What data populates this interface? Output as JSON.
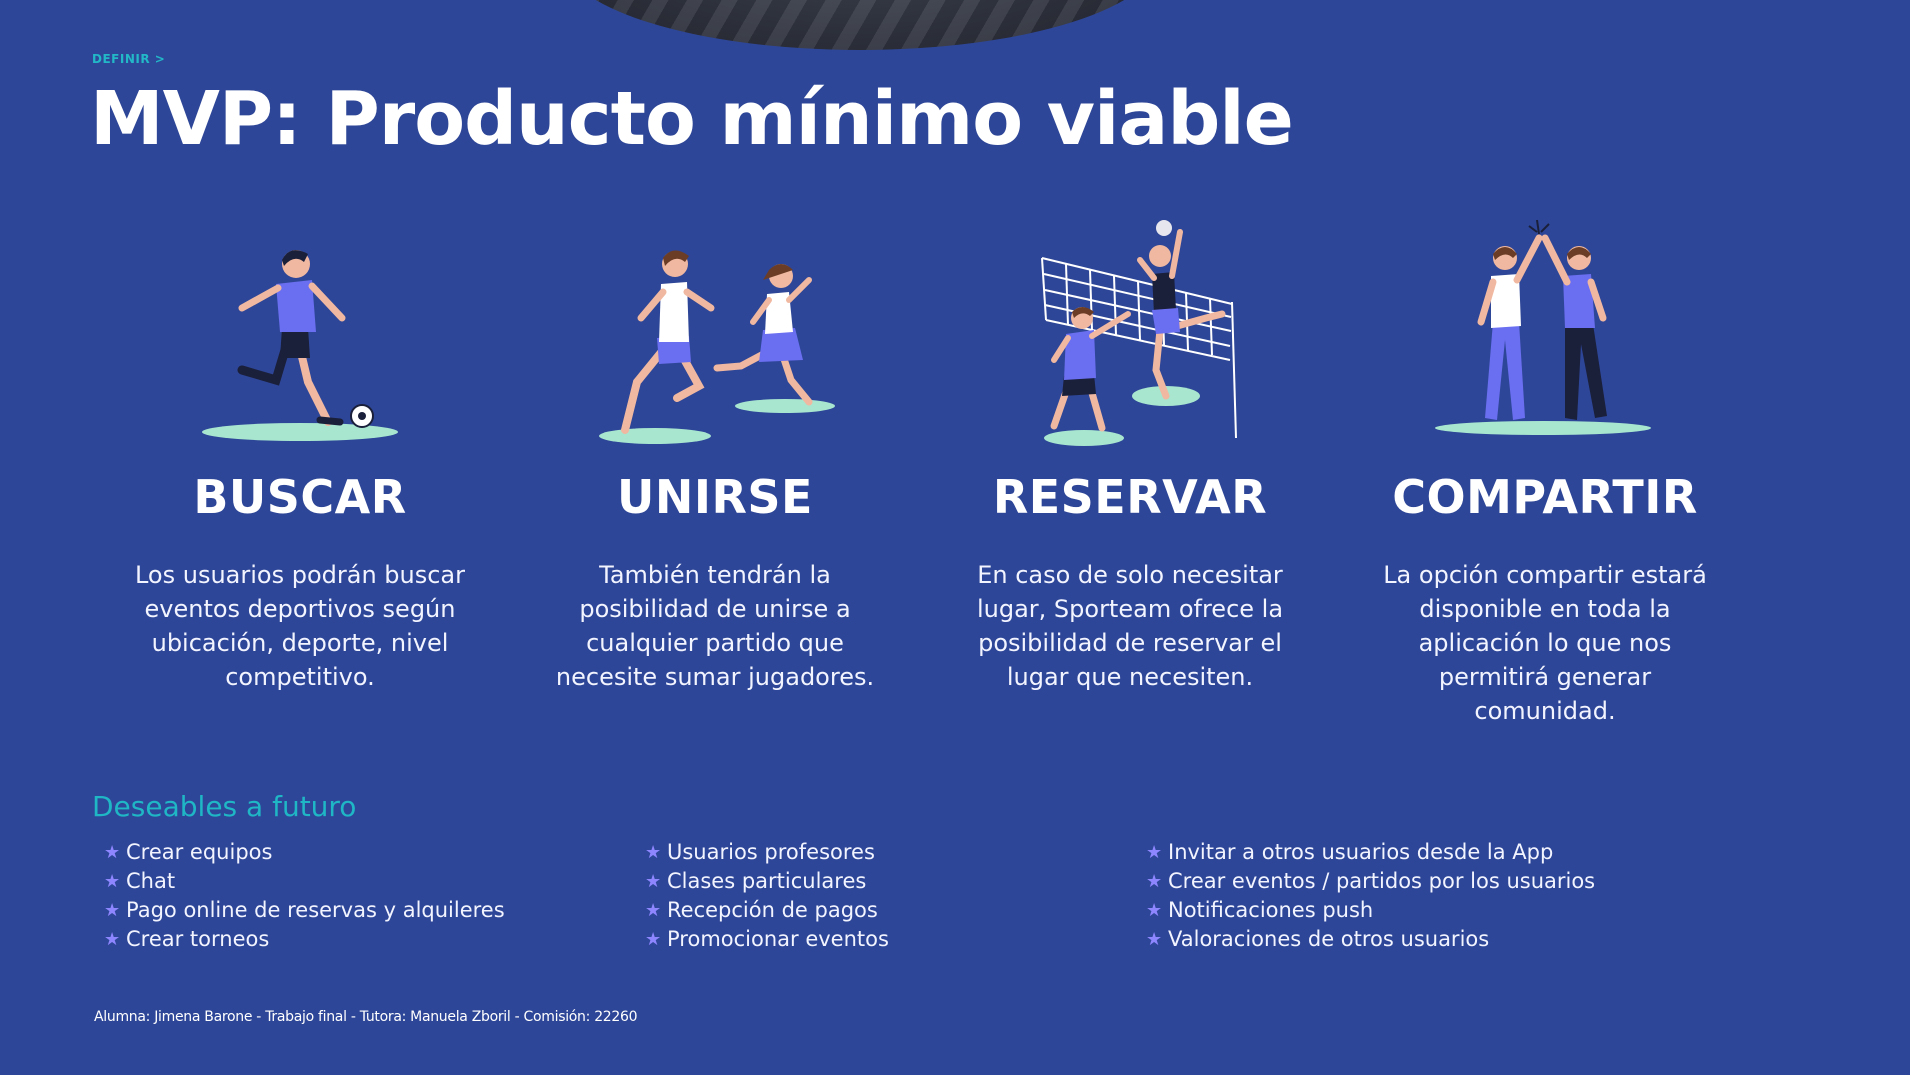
{
  "header": {
    "eyebrow": "DEFINIR >",
    "title": "MVP: Producto mínimo viable"
  },
  "features": [
    {
      "title": "BUSCAR",
      "description": "Los usuarios podrán buscar eventos deportivos según ubicación, deporte, nivel competitivo.",
      "icon": "soccer-player-illustration"
    },
    {
      "title": "UNIRSE",
      "description": "También tendrán la posibilidad de unirse a cualquier partido que necesite sumar jugadores.",
      "icon": "runners-illustration"
    },
    {
      "title": "RESERVAR",
      "description": "En caso de solo necesitar lugar, Sporteam ofrece la posibilidad de reservar el lugar que necesiten.",
      "icon": "volleyball-illustration"
    },
    {
      "title": "COMPARTIR",
      "description": "La opción compartir estará disponible en toda la aplicación lo que nos permitirá generar comunidad.",
      "icon": "high-five-illustration"
    }
  ],
  "wishlist": {
    "title": "Deseables a futuro",
    "columns": [
      [
        "Crear equipos",
        "Chat",
        "Pago online de reservas y alquileres",
        "Crear torneos"
      ],
      [
        "Usuarios profesores",
        "Clases particulares",
        "Recepción de pagos",
        "Promocionar eventos"
      ],
      [
        "Invitar a otros usuarios desde la App",
        "Crear eventos / partidos por los usuarios",
        "Notificaciones push",
        "Valoraciones de otros usuarios"
      ]
    ]
  },
  "footer": "Alumna: Jimena Barone - Trabajo final - Tutora: Manuela Zboril - Comisión: 22260",
  "colors": {
    "background": "#2e4697",
    "accent_teal": "#1fb6c6",
    "accent_purple": "#6a6ef0",
    "ground_mint": "#a8e6d0"
  }
}
